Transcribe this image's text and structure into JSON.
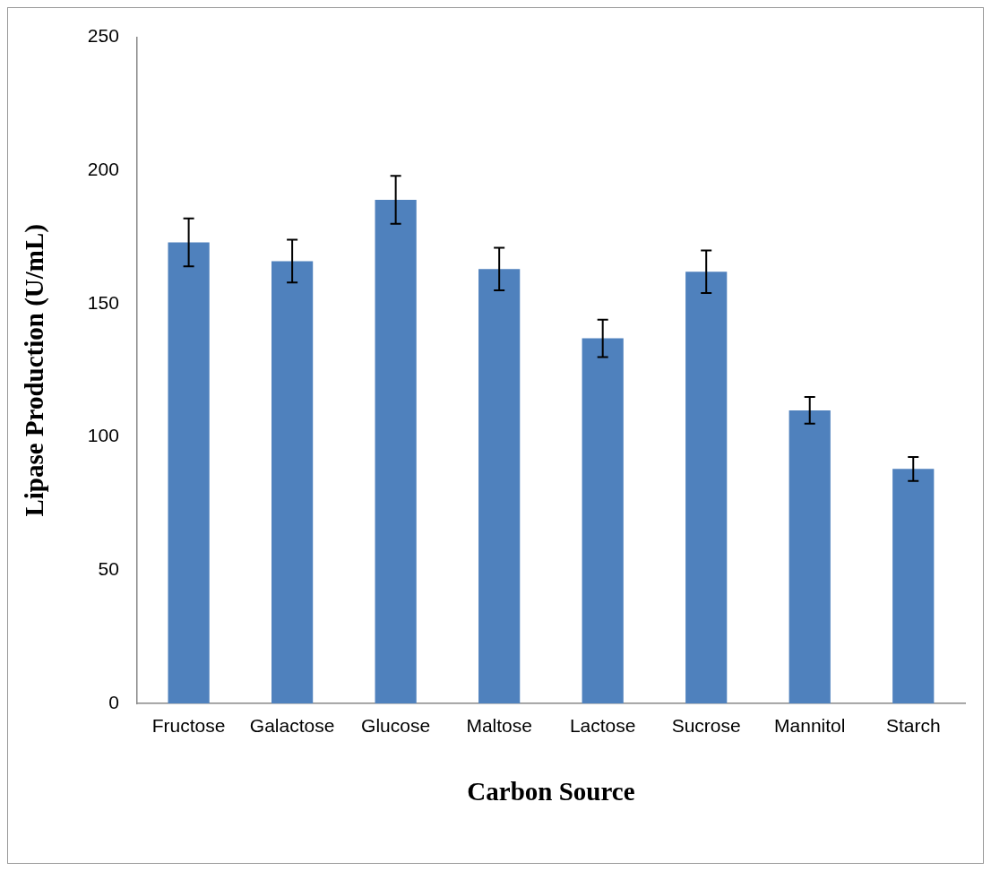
{
  "chart_data": {
    "type": "bar",
    "xlabel": "Carbon Source",
    "ylabel": "Lipase Production (U/mL)",
    "categories": [
      "Fructose",
      "Galactose",
      "Glucose",
      "Maltose",
      "Lactose",
      "Sucrose",
      "Mannitol",
      "Starch"
    ],
    "values": [
      173,
      166,
      189,
      163,
      137,
      162,
      110,
      88
    ],
    "errors": [
      9,
      8,
      9,
      8,
      7,
      8,
      5,
      4.5
    ],
    "color": "#4f81bd",
    "ylim": [
      0,
      250
    ],
    "yticks": [
      0,
      50,
      100,
      150,
      200,
      250
    ],
    "grid": false,
    "legend": false
  }
}
